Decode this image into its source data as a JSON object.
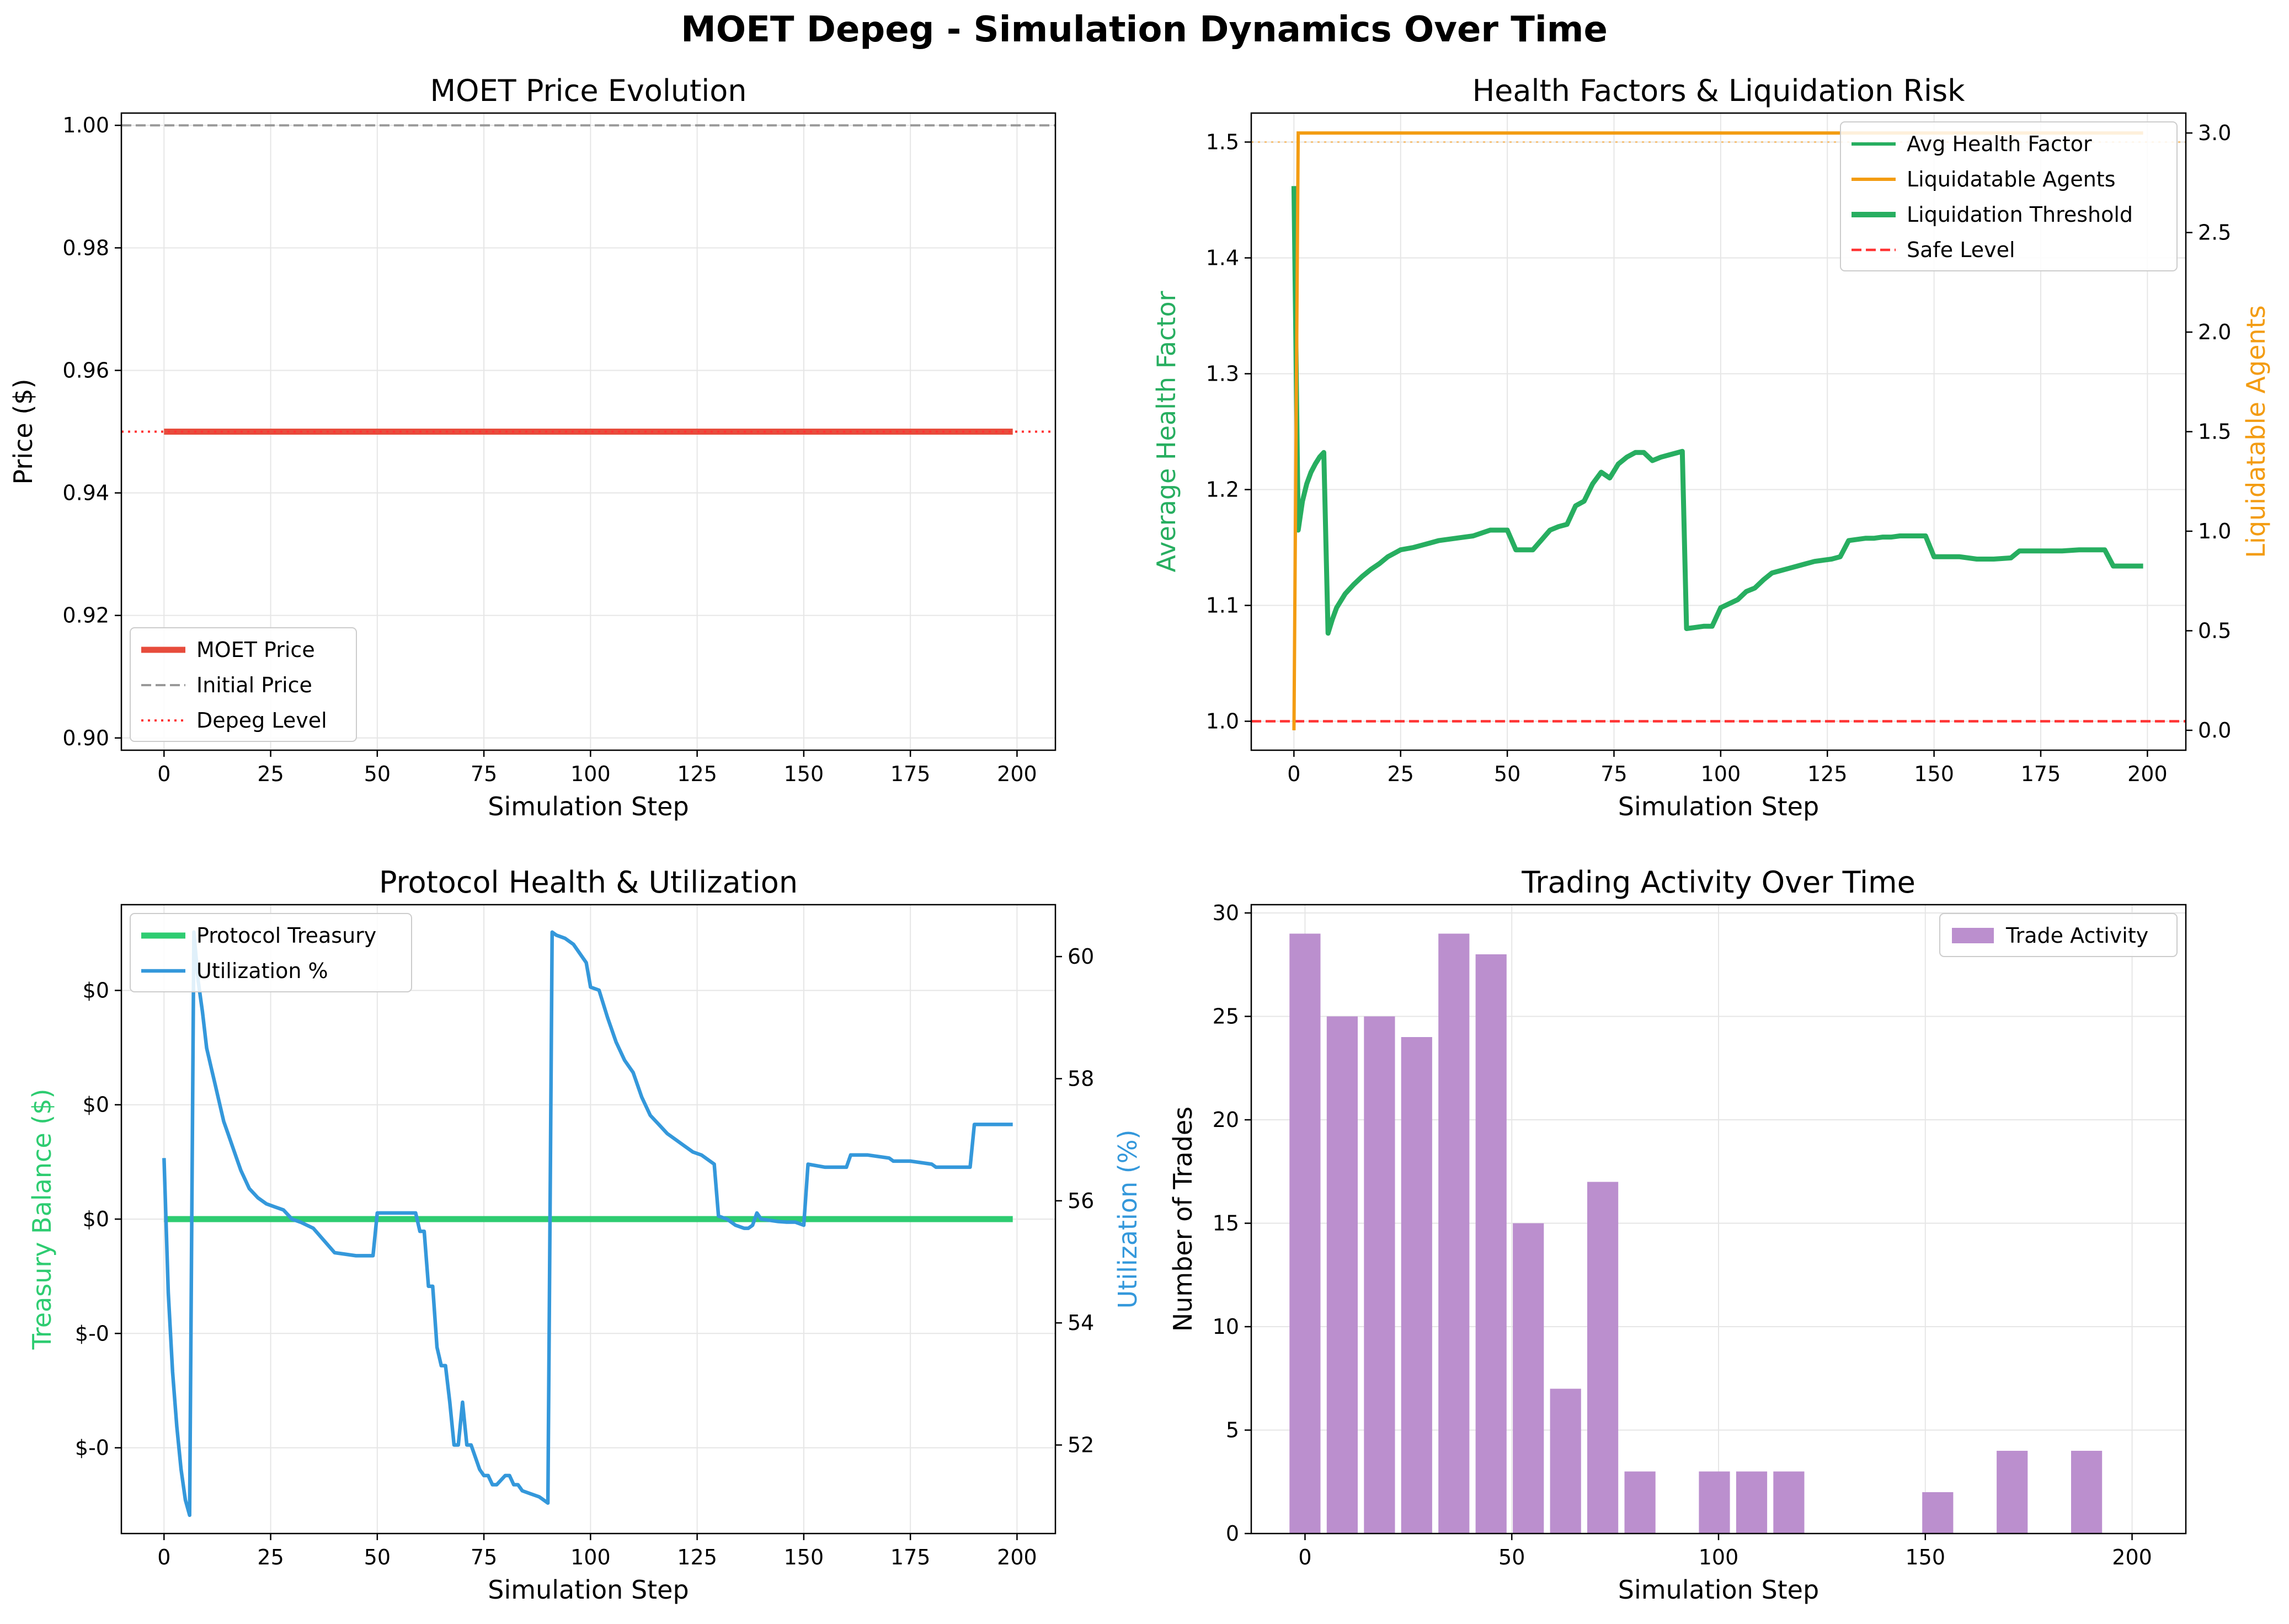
{
  "figure": {
    "suptitle": "MOET Depeg - Simulation Dynamics Over Time"
  },
  "colors": {
    "moet_price": "#e74c3c",
    "initial_price": "#999999",
    "depeg_level": "#ff3333",
    "health_factor": "#27ae60",
    "liq_threshold": "#27ae60",
    "liquidatable": "#f39c12",
    "safe_level": "#ff3333",
    "treasury": "#2ecc71",
    "utilization": "#3498db",
    "trades": "#bb8fce",
    "grid": "#e6e6e6"
  },
  "chart_data": [
    {
      "id": "price",
      "type": "line",
      "title": "MOET Price Evolution",
      "xlabel": "Simulation Step",
      "ylabel": "Price ($)",
      "xlim": [
        -10,
        209
      ],
      "ylim": [
        0.898,
        1.002
      ],
      "xticks": [
        0,
        25,
        50,
        75,
        100,
        125,
        150,
        175,
        200
      ],
      "yticks": [
        0.9,
        0.92,
        0.94,
        0.96,
        0.98,
        1.0
      ],
      "ytick_labels": [
        "0.90",
        "0.92",
        "0.94",
        "0.96",
        "0.98",
        "1.00"
      ],
      "legend_position": "lower-left",
      "series": [
        {
          "name": "MOET Price",
          "style": "solid-thick",
          "x": [
            0,
            199
          ],
          "y": [
            0.95,
            0.95
          ]
        },
        {
          "name": "Initial Price",
          "style": "dashed-hline",
          "value": 1.0
        },
        {
          "name": "Depeg Level",
          "style": "dotted-hline",
          "value": 0.95
        }
      ]
    },
    {
      "id": "health",
      "type": "line",
      "title": "Health Factors & Liquidation Risk",
      "xlabel": "Simulation Step",
      "ylabel": "Average Health Factor",
      "y2label": "Liquidatable Agents",
      "xlim": [
        -10,
        209
      ],
      "ylim": [
        0.975,
        1.525
      ],
      "y2lim": [
        -0.1,
        3.1
      ],
      "xticks": [
        0,
        25,
        50,
        75,
        100,
        125,
        150,
        175,
        200
      ],
      "yticks": [
        1.0,
        1.1,
        1.2,
        1.3,
        1.4,
        1.5
      ],
      "ytick_labels": [
        "1.0",
        "1.1",
        "1.2",
        "1.3",
        "1.4",
        "1.5"
      ],
      "y2ticks": [
        0.0,
        0.5,
        1.0,
        1.5,
        2.0,
        2.5,
        3.0
      ],
      "y2tick_labels": [
        "0.0",
        "0.5",
        "1.0",
        "1.5",
        "2.0",
        "2.5",
        "3.0"
      ],
      "legend_position": "upper-right",
      "series": [
        {
          "name": "Avg Health Factor",
          "axis": "y",
          "style": "solid-thick",
          "x": [
            0,
            1,
            2,
            3,
            4,
            5,
            6,
            7,
            8,
            9,
            10,
            12,
            14,
            16,
            18,
            20,
            22,
            24,
            25,
            28,
            30,
            32,
            34,
            36,
            38,
            40,
            42,
            46,
            50,
            52,
            56,
            60,
            62,
            64,
            66,
            68,
            70,
            72,
            74,
            76,
            78,
            80,
            82,
            84,
            86,
            88,
            91,
            92,
            94,
            96,
            98,
            100,
            104,
            106,
            108,
            110,
            112,
            114,
            116,
            118,
            120,
            122,
            124,
            126,
            128,
            130,
            132,
            134,
            136,
            138,
            140,
            142,
            144,
            146,
            148,
            150,
            152,
            156,
            160,
            164,
            168,
            170,
            172,
            176,
            180,
            184,
            188,
            190,
            192,
            196,
            199
          ],
          "y": [
            1.462,
            1.165,
            1.19,
            1.205,
            1.215,
            1.222,
            1.228,
            1.232,
            1.076,
            1.088,
            1.098,
            1.11,
            1.118,
            1.125,
            1.131,
            1.136,
            1.142,
            1.146,
            1.148,
            1.15,
            1.152,
            1.154,
            1.156,
            1.157,
            1.158,
            1.159,
            1.16,
            1.165,
            1.165,
            1.148,
            1.148,
            1.165,
            1.168,
            1.17,
            1.186,
            1.19,
            1.205,
            1.215,
            1.21,
            1.222,
            1.228,
            1.232,
            1.232,
            1.225,
            1.228,
            1.23,
            1.233,
            1.08,
            1.081,
            1.082,
            1.082,
            1.098,
            1.105,
            1.112,
            1.115,
            1.122,
            1.128,
            1.13,
            1.132,
            1.134,
            1.136,
            1.138,
            1.139,
            1.14,
            1.142,
            1.156,
            1.157,
            1.158,
            1.158,
            1.159,
            1.159,
            1.16,
            1.16,
            1.16,
            1.16,
            1.142,
            1.142,
            1.142,
            1.14,
            1.14,
            1.141,
            1.147,
            1.147,
            1.147,
            1.147,
            1.148,
            1.148,
            1.148,
            1.134,
            1.134,
            1.134
          ]
        },
        {
          "name": "Liquidatable Agents",
          "axis": "y2",
          "style": "solid",
          "x": [
            0,
            1,
            2,
            199
          ],
          "y": [
            0,
            3,
            3,
            3
          ]
        },
        {
          "name": "Liquidation Threshold",
          "axis": "y",
          "style": "solid-thick-legend-only"
        },
        {
          "name": "Safe Level",
          "axis": "y",
          "style": "dashed-hline",
          "value": 1.0
        },
        {
          "name": "",
          "axis": "y",
          "style": "dotted-faint-hline",
          "value": 1.5
        }
      ]
    },
    {
      "id": "protocol",
      "type": "line",
      "title": "Protocol Health & Utilization",
      "xlabel": "Simulation Step",
      "ylabel": "Treasury Balance ($)",
      "y2label": "Utilization (%)",
      "xlim": [
        -10,
        209
      ],
      "ylim": [
        -0.055,
        0.055
      ],
      "y2lim": [
        50.55,
        60.85
      ],
      "xticks": [
        0,
        25,
        50,
        75,
        100,
        125,
        150,
        175,
        200
      ],
      "yticks": [
        -0.04,
        -0.02,
        0.0,
        0.02,
        0.04
      ],
      "ytick_labels": [
        "$-0",
        "$-0",
        "$0",
        "$0",
        "$0"
      ],
      "y2ticks": [
        52,
        54,
        56,
        58,
        60
      ],
      "y2tick_labels": [
        "52",
        "54",
        "56",
        "58",
        "60"
      ],
      "legend_position": "upper-left",
      "series": [
        {
          "name": "Protocol Treasury",
          "axis": "y",
          "style": "solid-thick",
          "x": [
            0,
            199
          ],
          "y": [
            0,
            0
          ]
        },
        {
          "name": "Utilization %",
          "axis": "y2",
          "style": "solid",
          "x": [
            0,
            1,
            2,
            3,
            4,
            5,
            6,
            7,
            8,
            9,
            10,
            11,
            12,
            13,
            14,
            15,
            16,
            17,
            18,
            20,
            22,
            24,
            26,
            28,
            30,
            32,
            35,
            40,
            45,
            49,
            50,
            55,
            59,
            60,
            61,
            62,
            63,
            64,
            65,
            66,
            67,
            68,
            69,
            70,
            71,
            72,
            74,
            75,
            76,
            77,
            78,
            80,
            81,
            82,
            83,
            84,
            86,
            88,
            90,
            91,
            92,
            94,
            96,
            99,
            100,
            102,
            104,
            106,
            108,
            110,
            112,
            114,
            116,
            118,
            120,
            122,
            124,
            126,
            129,
            130,
            132,
            134,
            136,
            137,
            138,
            139,
            140,
            142,
            144,
            146,
            148,
            150,
            151,
            155,
            160,
            161,
            165,
            170,
            171,
            175,
            180,
            181,
            185,
            189,
            190,
            199
          ],
          "y": [
            56.7,
            54.5,
            53.2,
            52.3,
            51.6,
            51.1,
            50.85,
            60.4,
            59.6,
            59.1,
            58.5,
            58.2,
            57.9,
            57.6,
            57.3,
            57.1,
            56.9,
            56.7,
            56.5,
            56.2,
            56.05,
            55.95,
            55.9,
            55.85,
            55.7,
            55.65,
            55.55,
            55.15,
            55.1,
            55.1,
            55.8,
            55.8,
            55.8,
            55.5,
            55.5,
            54.6,
            54.6,
            53.6,
            53.3,
            53.3,
            52.7,
            52.0,
            52.0,
            52.7,
            52.0,
            52.0,
            51.6,
            51.5,
            51.5,
            51.35,
            51.35,
            51.5,
            51.5,
            51.35,
            51.35,
            51.25,
            51.2,
            51.15,
            51.05,
            60.4,
            60.35,
            60.3,
            60.2,
            59.9,
            59.5,
            59.45,
            59.0,
            58.6,
            58.3,
            58.1,
            57.7,
            57.4,
            57.25,
            57.1,
            57.0,
            56.9,
            56.8,
            56.75,
            56.6,
            55.75,
            55.7,
            55.6,
            55.55,
            55.55,
            55.6,
            55.8,
            55.7,
            55.68,
            55.66,
            55.65,
            55.65,
            55.6,
            56.6,
            56.55,
            56.55,
            56.75,
            56.75,
            56.7,
            56.65,
            56.65,
            56.6,
            56.55,
            56.55,
            56.55,
            57.25,
            57.25
          ]
        }
      ]
    },
    {
      "id": "trades",
      "type": "bar",
      "title": "Trading Activity Over Time",
      "xlabel": "Simulation Step",
      "ylabel": "Number of Trades",
      "xlim": [
        -13,
        213
      ],
      "ylim": [
        0,
        30.4
      ],
      "xticks": [
        0,
        50,
        100,
        150,
        200
      ],
      "yticks": [
        0,
        5,
        10,
        15,
        20,
        25,
        30
      ],
      "ytick_labels": [
        "0",
        "5",
        "10",
        "15",
        "20",
        "25",
        "30"
      ],
      "legend_position": "upper-right",
      "bar_width": 7.5,
      "series": [
        {
          "name": "Trade Activity",
          "x": [
            0,
            9,
            18,
            27,
            36,
            45,
            54,
            63,
            72,
            81,
            90,
            99,
            108,
            117,
            126,
            135,
            144,
            153,
            162,
            171,
            180,
            189,
            198
          ],
          "values": [
            29,
            25,
            25,
            24,
            29,
            28,
            15,
            7,
            17,
            3,
            0,
            3,
            3,
            3,
            0,
            0,
            0,
            2,
            0,
            4,
            0,
            4,
            0
          ]
        }
      ]
    }
  ]
}
